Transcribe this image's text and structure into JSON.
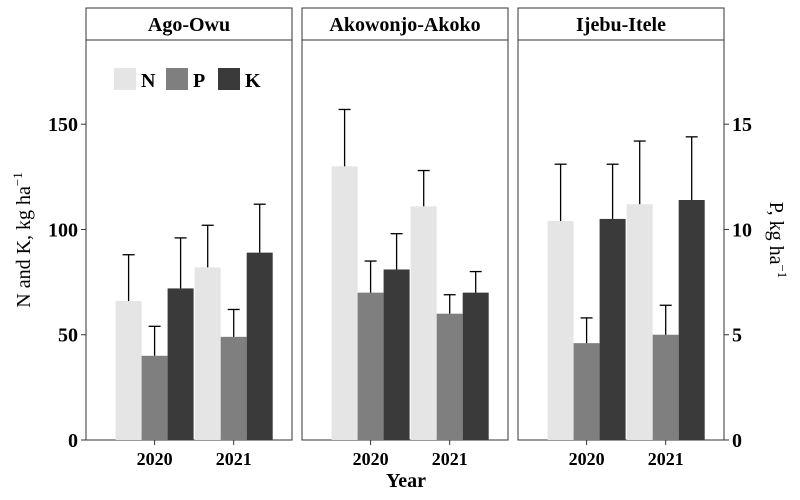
{
  "chart_data": {
    "type": "bar",
    "xlabel": "Year",
    "ylabel_left": "N and K, kg ha",
    "ylabel_left_exp": "−1",
    "ylabel_right": "P, kg ha",
    "ylabel_right_exp": "−1",
    "left_axis": {
      "min": 0,
      "max": 190,
      "ticks": [
        0,
        50,
        100,
        150
      ]
    },
    "right_axis": {
      "min": 0,
      "max": 19,
      "ticks": [
        0,
        5,
        10,
        15
      ],
      "axis_for": "P"
    },
    "categories": [
      "2020",
      "2021"
    ],
    "legend": {
      "placement": "top-left of first panel",
      "entries": [
        {
          "key": "N",
          "color": "#e5e5e5"
        },
        {
          "key": "P",
          "color": "#7f7f7f"
        },
        {
          "key": "K",
          "color": "#3a3a3a"
        }
      ]
    },
    "panels": [
      {
        "name": "Ago-Owu",
        "series": [
          {
            "name": "N",
            "axis": "left",
            "values": [
              66,
              82
            ],
            "errors": [
              22,
              20
            ]
          },
          {
            "name": "P",
            "axis": "right",
            "values": [
              4.0,
              4.9
            ],
            "errors": [
              1.4,
              1.3
            ]
          },
          {
            "name": "K",
            "axis": "left",
            "values": [
              72,
              89
            ],
            "errors": [
              24,
              23
            ]
          }
        ]
      },
      {
        "name": "Akowonjo-Akoko",
        "series": [
          {
            "name": "N",
            "axis": "left",
            "values": [
              130,
              111
            ],
            "errors": [
              27,
              17
            ]
          },
          {
            "name": "P",
            "axis": "right",
            "values": [
              7.0,
              6.0
            ],
            "errors": [
              1.5,
              0.9
            ]
          },
          {
            "name": "K",
            "axis": "left",
            "values": [
              81,
              70
            ],
            "errors": [
              17,
              10
            ]
          }
        ]
      },
      {
        "name": "Ijebu-Itele",
        "series": [
          {
            "name": "N",
            "axis": "left",
            "values": [
              104,
              112
            ],
            "errors": [
              27,
              30
            ]
          },
          {
            "name": "P",
            "axis": "right",
            "values": [
              4.6,
              5.0
            ],
            "errors": [
              1.2,
              1.4
            ]
          },
          {
            "name": "K",
            "axis": "left",
            "values": [
              105,
              114
            ],
            "errors": [
              26,
              30
            ]
          }
        ]
      }
    ]
  }
}
